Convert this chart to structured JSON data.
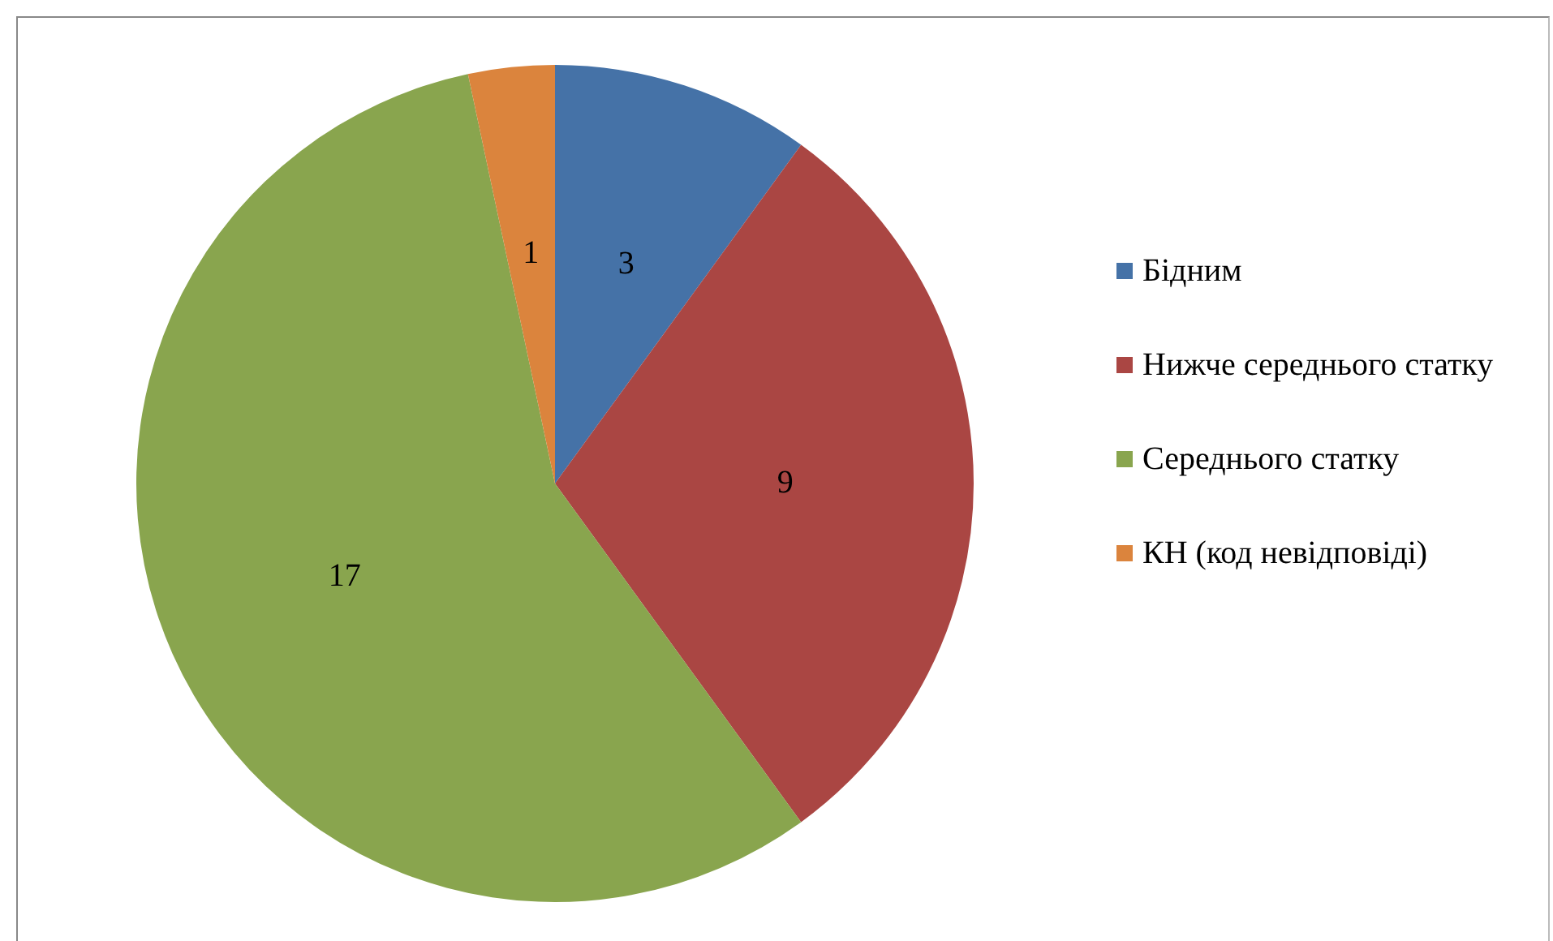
{
  "chart_data": {
    "type": "pie",
    "categories": [
      "Бідним",
      "Нижче середнього статку",
      "Середнього статку",
      "КН (код невідповіді)"
    ],
    "values": [
      3,
      9,
      17,
      1
    ],
    "colors": [
      "#4572a7",
      "#aa4643",
      "#89a54e",
      "#db843d"
    ],
    "data_labels": true,
    "legend": "right"
  }
}
